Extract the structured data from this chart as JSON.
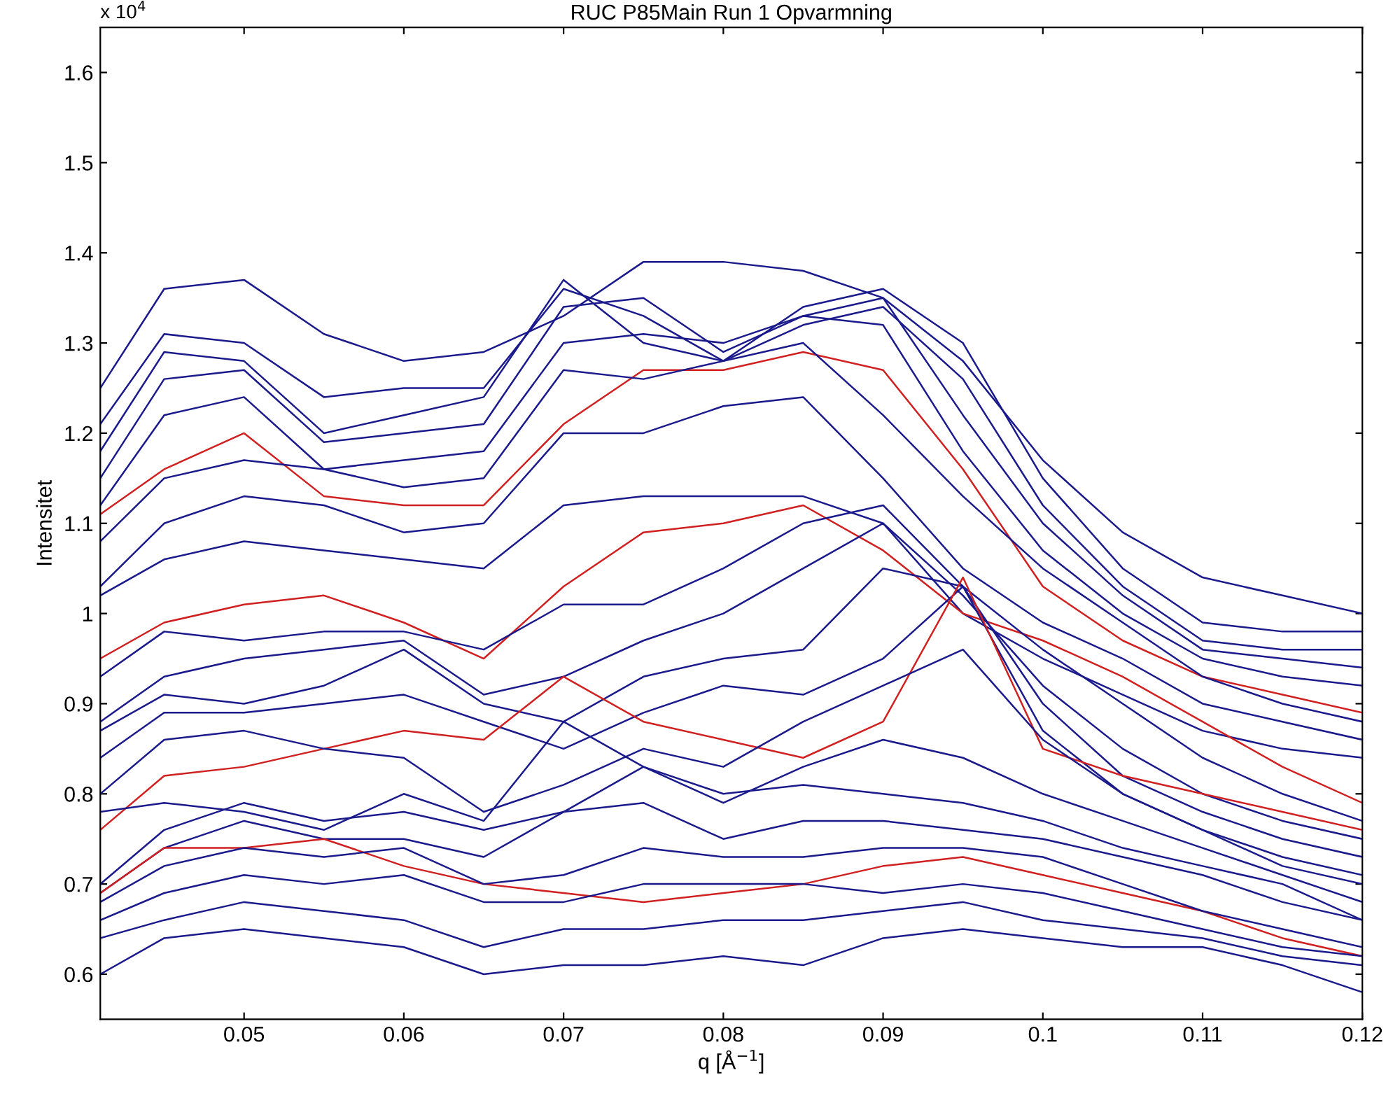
{
  "chart_data": {
    "type": "line",
    "title": "RUC P85Main Run 1 Opvarmning",
    "xlabel": "q [Å$^{−1}$]",
    "ylabel": "Intensitet",
    "annotations": [
      "x 10$^{4}$"
    ],
    "x": [
      0.041,
      0.045,
      0.05,
      0.055,
      0.06,
      0.065,
      0.07,
      0.075,
      0.08,
      0.085,
      0.09,
      0.095,
      0.1,
      0.105,
      0.11,
      0.115,
      0.12
    ],
    "xlim": [
      0.041,
      0.12
    ],
    "xticks": [
      0.05,
      0.06,
      0.07,
      0.08,
      0.09,
      0.1,
      0.11,
      0.12
    ],
    "ylim": [
      0.55,
      1.65
    ],
    "yticks": [
      0.6,
      0.7,
      0.8,
      0.9,
      1,
      1.1,
      1.2,
      1.3,
      1.4,
      1.5,
      1.6
    ],
    "marker": "none",
    "line_style": "solid",
    "series": [
      {
        "color": "#1a1a8c",
        "values": [
          1.25,
          1.36,
          1.37,
          1.31,
          1.28,
          1.29,
          1.33,
          1.39,
          1.39,
          1.38,
          1.35,
          1.28,
          1.17,
          1.09,
          1.04,
          1.02,
          1.0
        ]
      },
      {
        "color": "#1a1a8c",
        "values": [
          1.21,
          1.31,
          1.3,
          1.24,
          1.25,
          1.25,
          1.36,
          1.33,
          1.28,
          1.34,
          1.36,
          1.3,
          1.15,
          1.05,
          0.99,
          0.98,
          0.98
        ]
      },
      {
        "color": "#1a1a8c",
        "values": [
          1.18,
          1.29,
          1.28,
          1.2,
          1.22,
          1.24,
          1.37,
          1.3,
          1.28,
          1.32,
          1.34,
          1.26,
          1.12,
          1.03,
          0.97,
          0.96,
          0.96
        ]
      },
      {
        "color": "#1a1a8c",
        "values": [
          1.15,
          1.26,
          1.27,
          1.19,
          1.2,
          1.21,
          1.34,
          1.35,
          1.29,
          1.33,
          1.35,
          1.22,
          1.1,
          1.02,
          0.96,
          0.95,
          0.94
        ]
      },
      {
        "color": "#1a1a8c",
        "values": [
          1.12,
          1.22,
          1.24,
          1.16,
          1.17,
          1.18,
          1.3,
          1.31,
          1.3,
          1.33,
          1.32,
          1.18,
          1.07,
          1.0,
          0.95,
          0.93,
          0.92
        ]
      },
      {
        "color": "#d02020",
        "values": [
          1.11,
          1.16,
          1.2,
          1.13,
          1.12,
          1.12,
          1.21,
          1.27,
          1.27,
          1.29,
          1.27,
          1.16,
          1.03,
          0.97,
          0.93,
          0.91,
          0.89
        ]
      },
      {
        "color": "#1a1a8c",
        "values": [
          1.08,
          1.15,
          1.17,
          1.16,
          1.14,
          1.15,
          1.27,
          1.26,
          1.28,
          1.3,
          1.22,
          1.13,
          1.05,
          0.99,
          0.93,
          0.9,
          0.88
        ]
      },
      {
        "color": "#1a1a8c",
        "values": [
          1.03,
          1.1,
          1.13,
          1.12,
          1.09,
          1.1,
          1.2,
          1.2,
          1.23,
          1.24,
          1.15,
          1.05,
          0.99,
          0.95,
          0.9,
          0.88,
          0.86
        ]
      },
      {
        "color": "#1a1a8c",
        "values": [
          1.02,
          1.06,
          1.08,
          1.07,
          1.06,
          1.05,
          1.12,
          1.13,
          1.13,
          1.13,
          1.1,
          1.0,
          0.95,
          0.91,
          0.87,
          0.85,
          0.84
        ]
      },
      {
        "color": "#d02020",
        "values": [
          0.95,
          0.99,
          1.01,
          1.02,
          0.99,
          0.95,
          1.03,
          1.09,
          1.1,
          1.12,
          1.07,
          1.0,
          0.97,
          0.93,
          0.88,
          0.83,
          0.79
        ]
      },
      {
        "color": "#1a1a8c",
        "values": [
          0.93,
          0.98,
          0.97,
          0.98,
          0.98,
          0.96,
          1.01,
          1.01,
          1.05,
          1.1,
          1.12,
          1.03,
          0.96,
          0.9,
          0.84,
          0.8,
          0.77
        ]
      },
      {
        "color": "#1a1a8c",
        "values": [
          0.88,
          0.93,
          0.95,
          0.96,
          0.97,
          0.91,
          0.93,
          0.97,
          1.0,
          1.05,
          1.1,
          1.02,
          0.92,
          0.85,
          0.8,
          0.77,
          0.75
        ]
      },
      {
        "color": "#1a1a8c",
        "values": [
          0.87,
          0.91,
          0.9,
          0.92,
          0.96,
          0.9,
          0.88,
          0.93,
          0.95,
          0.96,
          1.05,
          1.03,
          0.9,
          0.82,
          0.78,
          0.75,
          0.73
        ]
      },
      {
        "color": "#1a1a8c",
        "values": [
          0.84,
          0.89,
          0.89,
          0.9,
          0.91,
          0.88,
          0.85,
          0.89,
          0.92,
          0.91,
          0.95,
          1.03,
          0.87,
          0.8,
          0.76,
          0.73,
          0.71
        ]
      },
      {
        "color": "#d02020",
        "values": [
          0.76,
          0.82,
          0.83,
          0.85,
          0.87,
          0.86,
          0.93,
          0.88,
          0.86,
          0.84,
          0.88,
          1.04,
          0.85,
          0.82,
          0.8,
          0.78,
          0.76
        ]
      },
      {
        "color": "#1a1a8c",
        "values": [
          0.8,
          0.86,
          0.87,
          0.85,
          0.84,
          0.78,
          0.81,
          0.85,
          0.83,
          0.88,
          0.92,
          0.96,
          0.86,
          0.8,
          0.76,
          0.72,
          0.7
        ]
      },
      {
        "color": "#1a1a8c",
        "values": [
          0.78,
          0.79,
          0.78,
          0.76,
          0.8,
          0.77,
          0.88,
          0.83,
          0.79,
          0.83,
          0.86,
          0.84,
          0.8,
          0.77,
          0.74,
          0.71,
          0.68
        ]
      },
      {
        "color": "#1a1a8c",
        "values": [
          0.7,
          0.76,
          0.79,
          0.77,
          0.78,
          0.76,
          0.78,
          0.83,
          0.8,
          0.81,
          0.8,
          0.79,
          0.77,
          0.74,
          0.72,
          0.7,
          0.66
        ]
      },
      {
        "color": "#1a1a8c",
        "values": [
          0.69,
          0.74,
          0.77,
          0.75,
          0.75,
          0.73,
          0.78,
          0.79,
          0.75,
          0.77,
          0.77,
          0.76,
          0.75,
          0.73,
          0.71,
          0.68,
          0.66
        ]
      },
      {
        "color": "#d02020",
        "values": [
          0.69,
          0.74,
          0.74,
          0.75,
          0.72,
          0.7,
          0.69,
          0.68,
          0.69,
          0.7,
          0.72,
          0.73,
          0.71,
          0.69,
          0.67,
          0.64,
          0.62
        ]
      },
      {
        "color": "#1a1a8c",
        "values": [
          0.68,
          0.72,
          0.74,
          0.73,
          0.74,
          0.7,
          0.71,
          0.74,
          0.73,
          0.73,
          0.74,
          0.74,
          0.73,
          0.7,
          0.67,
          0.65,
          0.63
        ]
      },
      {
        "color": "#1a1a8c",
        "values": [
          0.66,
          0.69,
          0.71,
          0.7,
          0.71,
          0.68,
          0.68,
          0.7,
          0.7,
          0.7,
          0.69,
          0.7,
          0.69,
          0.67,
          0.65,
          0.63,
          0.62
        ]
      },
      {
        "color": "#1a1a8c",
        "values": [
          0.64,
          0.66,
          0.68,
          0.67,
          0.66,
          0.63,
          0.65,
          0.65,
          0.66,
          0.66,
          0.67,
          0.68,
          0.66,
          0.65,
          0.64,
          0.62,
          0.61
        ]
      },
      {
        "color": "#1a1a8c",
        "values": [
          0.6,
          0.64,
          0.65,
          0.64,
          0.63,
          0.6,
          0.61,
          0.61,
          0.62,
          0.61,
          0.64,
          0.65,
          0.64,
          0.63,
          0.63,
          0.61,
          0.58
        ]
      }
    ]
  }
}
